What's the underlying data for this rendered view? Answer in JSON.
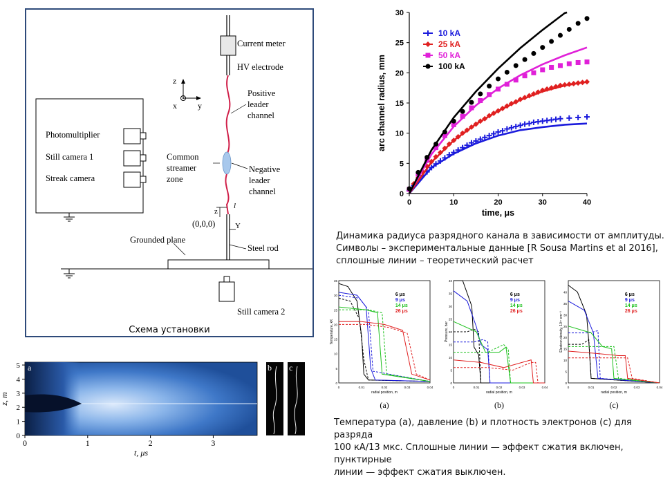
{
  "setup": {
    "caption": "Схема установки",
    "labels": {
      "current_meter": "Current meter",
      "hv_electrode": "HV electrode",
      "positive_leader_1": "Positive",
      "positive_leader_2": "leader",
      "positive_leader_3": "channel",
      "common_1": "Common",
      "common_2": "streamer",
      "common_3": "zone",
      "negative_1": "Negative",
      "negative_2": "leader",
      "negative_3": "channel",
      "photomultiplier": "Photomultiplier",
      "still_camera_1": "Still camera 1",
      "streak_camera": "Streak camera",
      "grounded_plane": "Grounded plane",
      "steel_rod": "Steel rod",
      "origin": "(0,0,0)",
      "still_camera_2": "Still camera 2",
      "axis_z": "z",
      "axis_x": "x",
      "axis_y": "y",
      "z_small": "z",
      "l_small": "l",
      "y_small": "Y"
    },
    "colors": {
      "frame": "#2e4a7a",
      "channel": "#d0204a",
      "zone": "#a8c8ec"
    }
  },
  "radius_chart": {
    "chart_data": {
      "type": "line",
      "xlabel": "time, μs",
      "ylabel": "arc channel radius, mm",
      "xlim": [
        0,
        40
      ],
      "ylim": [
        0,
        30
      ],
      "x_ticks": [
        "0",
        "10",
        "20",
        "30",
        "40"
      ],
      "y_ticks": [
        "0",
        "5",
        "10",
        "15",
        "20",
        "25",
        "30"
      ],
      "legend_position": "top-left",
      "series": [
        {
          "name": "10 kA",
          "color": "#1a1adc",
          "marker": "plus",
          "points": [
            [
              0,
              0.5
            ],
            [
              1,
              1.3
            ],
            [
              2,
              2.3
            ],
            [
              3,
              3
            ],
            [
              4,
              3.6
            ],
            [
              5,
              4.3
            ],
            [
              6,
              4.9
            ],
            [
              7,
              5.4
            ],
            [
              8,
              5.9
            ],
            [
              9,
              6.4
            ],
            [
              10,
              6.8
            ],
            [
              11,
              7.2
            ],
            [
              12,
              7.6
            ],
            [
              13,
              8
            ],
            [
              14,
              8.4
            ],
            [
              15,
              8.7
            ],
            [
              16,
              9
            ],
            [
              17,
              9.3
            ],
            [
              18,
              9.6
            ],
            [
              19,
              9.9
            ],
            [
              20,
              10.2
            ],
            [
              21,
              10.4
            ],
            [
              22,
              10.7
            ],
            [
              23,
              10.9
            ],
            [
              24,
              11.1
            ],
            [
              25,
              11.3
            ],
            [
              26,
              11.5
            ],
            [
              27,
              11.6
            ],
            [
              28,
              11.8
            ],
            [
              29,
              11.9
            ],
            [
              30,
              12
            ],
            [
              31,
              12.1
            ],
            [
              32,
              12.2
            ],
            [
              33,
              12.3
            ],
            [
              34,
              12.4
            ],
            [
              36,
              12.5
            ],
            [
              38,
              12.6
            ],
            [
              40,
              12.7
            ]
          ],
          "theory": [
            [
              0,
              0
            ],
            [
              5,
              4.3
            ],
            [
              10,
              6.6
            ],
            [
              15,
              8.3
            ],
            [
              20,
              9.6
            ],
            [
              25,
              10.5
            ],
            [
              30,
              11
            ],
            [
              35,
              11.4
            ],
            [
              40,
              11.6
            ]
          ]
        },
        {
          "name": "25 kA",
          "color": "#e02020",
          "marker": "diamond",
          "points": [
            [
              0,
              0.6
            ],
            [
              1,
              1.6
            ],
            [
              2,
              2.6
            ],
            [
              3,
              3.6
            ],
            [
              4,
              4.5
            ],
            [
              5,
              5.3
            ],
            [
              6,
              6.1
            ],
            [
              7,
              6.8
            ],
            [
              8,
              7.5
            ],
            [
              9,
              8.2
            ],
            [
              10,
              8.8
            ],
            [
              11,
              9.4
            ],
            [
              12,
              10
            ],
            [
              13,
              10.5
            ],
            [
              14,
              11
            ],
            [
              15,
              11.5
            ],
            [
              16,
              12
            ],
            [
              17,
              12.4
            ],
            [
              18,
              12.9
            ],
            [
              19,
              13.3
            ],
            [
              20,
              13.7
            ],
            [
              21,
              14.1
            ],
            [
              22,
              14.5
            ],
            [
              23,
              14.9
            ],
            [
              24,
              15.2
            ],
            [
              25,
              15.6
            ],
            [
              26,
              15.9
            ],
            [
              27,
              16.2
            ],
            [
              28,
              16.5
            ],
            [
              29,
              16.8
            ],
            [
              30,
              17.1
            ],
            [
              31,
              17.3
            ],
            [
              32,
              17.5
            ],
            [
              33,
              17.7
            ],
            [
              34,
              17.9
            ],
            [
              35,
              18
            ],
            [
              36,
              18.1
            ],
            [
              37,
              18.2
            ],
            [
              38,
              18.3
            ],
            [
              39,
              18.4
            ],
            [
              40,
              18.5
            ]
          ],
          "theory": [
            [
              0,
              0
            ],
            [
              5,
              5.2
            ],
            [
              10,
              8.8
            ],
            [
              15,
              11.5
            ],
            [
              20,
              13.7
            ],
            [
              25,
              15.5
            ],
            [
              30,
              16.9
            ],
            [
              35,
              17.9
            ],
            [
              40,
              18.5
            ]
          ]
        },
        {
          "name": "50 kA",
          "color": "#e020d8",
          "marker": "square",
          "points": [
            [
              0,
              0.7
            ],
            [
              2,
              3.2
            ],
            [
              4,
              5.5
            ],
            [
              6,
              7.6
            ],
            [
              8,
              9.6
            ],
            [
              10,
              11.4
            ],
            [
              12,
              12.8
            ],
            [
              14,
              14.2
            ],
            [
              16,
              15.4
            ],
            [
              18,
              16.4
            ],
            [
              20,
              17.3
            ],
            [
              22,
              18.1
            ],
            [
              24,
              18.8
            ],
            [
              26,
              19.5
            ],
            [
              28,
              20
            ],
            [
              30,
              20.5
            ],
            [
              32,
              20.9
            ],
            [
              34,
              21.2
            ],
            [
              36,
              21.5
            ],
            [
              38,
              21.7
            ],
            [
              40,
              21.8
            ]
          ],
          "theory": [
            [
              0,
              0
            ],
            [
              5,
              6.5
            ],
            [
              10,
              11.1
            ],
            [
              15,
              14.6
            ],
            [
              20,
              17.4
            ],
            [
              25,
              19.6
            ],
            [
              30,
              21.4
            ],
            [
              35,
              22.9
            ],
            [
              40,
              24.2
            ]
          ]
        },
        {
          "name": "100 kA",
          "color": "#000000",
          "marker": "circle",
          "points": [
            [
              0,
              0.8
            ],
            [
              2,
              3.5
            ],
            [
              4,
              6
            ],
            [
              6,
              8.2
            ],
            [
              8,
              10.2
            ],
            [
              10,
              12
            ],
            [
              12,
              13.6
            ],
            [
              14,
              15.1
            ],
            [
              16,
              16.5
            ],
            [
              18,
              17.8
            ],
            [
              20,
              19
            ],
            [
              22,
              20.1
            ],
            [
              24,
              21.2
            ],
            [
              26,
              22.2
            ],
            [
              28,
              23.2
            ],
            [
              30,
              24.2
            ],
            [
              32,
              25.2
            ],
            [
              34,
              26.2
            ],
            [
              36,
              27.2
            ],
            [
              38,
              28.2
            ],
            [
              40,
              29
            ]
          ],
          "theory": [
            [
              0,
              0
            ],
            [
              5,
              7.2
            ],
            [
              10,
              12.6
            ],
            [
              15,
              16.9
            ],
            [
              20,
              20.7
            ],
            [
              25,
              24.1
            ],
            [
              30,
              27.1
            ],
            [
              35,
              29.9
            ],
            [
              35.5,
              30
            ]
          ]
        }
      ]
    },
    "caption": [
      "Динамика радиуса разрядного канала в зависимости от амплитуды.",
      "Символы – экспериментальные данные [R Sousa Martins et al 2016],",
      "сплошные линии – теоретический расчет"
    ]
  },
  "streak": {
    "chart_data": {
      "type": "heatmap",
      "xlabel": "t, μs",
      "ylabel": "z, m",
      "xlim": [
        0,
        3.7
      ],
      "ylim": [
        0,
        5.2
      ],
      "x_ticks": [
        "0",
        "1",
        "2",
        "3"
      ],
      "y_ticks": [
        "0",
        "1",
        "2",
        "3",
        "4",
        "5"
      ]
    },
    "panel_labels": [
      "a",
      "b",
      "c"
    ]
  },
  "profiles": {
    "panel_labels": [
      "(a)",
      "(b)",
      "(c)"
    ],
    "legend": [
      "6 μs",
      "9 μs",
      "14 μs",
      "26 μs"
    ],
    "legend_colors": [
      "#000000",
      "#1a1adc",
      "#19c019",
      "#e02020"
    ],
    "ylabels": [
      "Temperature, kK",
      "Pressure, bar",
      "Electron density, 10¹⁷ cm⁻³"
    ],
    "xlabel": "radial position, m",
    "x_ticks": [
      "0",
      "0.01",
      "0.02",
      "0.03",
      "0.04"
    ],
    "y_ticks_a": [
      "0",
      "5",
      "10",
      "15",
      "20",
      "25",
      "30",
      "35"
    ],
    "y_ticks_b": [
      "0",
      "5",
      "10",
      "15",
      "20",
      "25",
      "30",
      "35",
      "40"
    ],
    "y_ticks_c": [
      "0",
      "5",
      "10",
      "15",
      "20",
      "25",
      "30",
      "35",
      "40"
    ],
    "caption": [
      "Температура (a), давление (b) и плотность электронов (c) для разряда",
      "100 кА/13 мкс. Сплошные линии — эффект сжатия включен, пунктирные",
      "линии — эффект сжатия выключен."
    ]
  }
}
